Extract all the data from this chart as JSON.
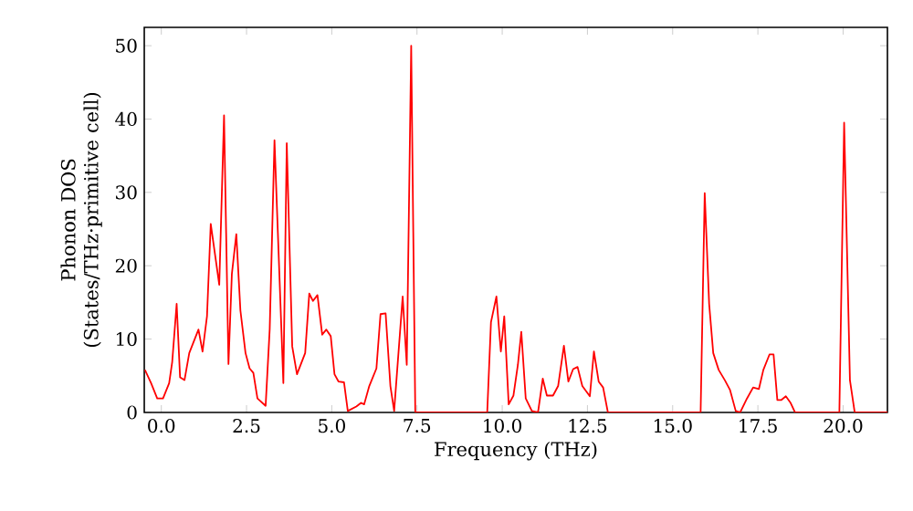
{
  "chart_data": {
    "type": "line",
    "xlabel": "Frequency (THz)",
    "ylabel": "Phonon DOS (States/THz·primitive cell)",
    "xlim": [
      -0.5,
      21.3
    ],
    "ylim": [
      0,
      52.5
    ],
    "xticks": [
      {
        "value": 0,
        "label": "0.0"
      },
      2.5,
      {
        "value": 5,
        "label": "5.0"
      },
      7.5,
      {
        "value": 10,
        "label": "10.0"
      },
      12.5,
      {
        "value": 15,
        "label": "15.0"
      },
      17.5,
      {
        "value": 20,
        "label": "20.0"
      }
    ],
    "yticks": [
      0,
      10,
      20,
      30,
      40,
      50
    ],
    "series": [
      {
        "color": "#ff0000",
        "x": [
          -0.48,
          -0.3,
          -0.12,
          0.05,
          0.23,
          0.32,
          0.45,
          0.55,
          0.68,
          0.82,
          1.09,
          1.21,
          1.34,
          1.45,
          1.7,
          1.84,
          1.97,
          2.07,
          2.2,
          2.32,
          2.47,
          2.59,
          2.7,
          2.82,
          3.06,
          3.18,
          3.32,
          3.58,
          3.68,
          3.84,
          3.98,
          4.22,
          4.34,
          4.45,
          4.58,
          4.72,
          4.84,
          4.97,
          5.08,
          5.2,
          5.36,
          5.47,
          5.72,
          5.86,
          5.95,
          6.1,
          6.31,
          6.43,
          6.58,
          6.72,
          6.83,
          7.08,
          7.2,
          7.33,
          7.45,
          9.56,
          9.67,
          9.83,
          9.96,
          10.06,
          10.19,
          10.33,
          10.46,
          10.56,
          10.69,
          10.87,
          11.05,
          11.19,
          11.31,
          11.49,
          11.64,
          11.81,
          11.94,
          12.08,
          12.21,
          12.35,
          12.57,
          12.69,
          12.83,
          12.96,
          13.1,
          15.82,
          15.94,
          16.07,
          16.19,
          16.35,
          16.53,
          16.68,
          16.85,
          16.98,
          17.18,
          17.36,
          17.53,
          17.66,
          17.84,
          17.96,
          18.07,
          18.19,
          18.32,
          18.46,
          18.59,
          19.89,
          20.03,
          20.2,
          20.34,
          21.3
        ],
        "values": [
          5.8,
          4.0,
          1.9,
          1.9,
          4.0,
          6.9,
          14.8,
          4.8,
          4.4,
          8.1,
          11.3,
          8.3,
          13.1,
          25.7,
          17.4,
          40.5,
          6.6,
          18.9,
          24.3,
          13.9,
          8.1,
          6.0,
          5.4,
          1.9,
          0.9,
          11.4,
          37.1,
          4.0,
          36.7,
          9.0,
          5.2,
          8.1,
          16.2,
          15.2,
          16.0,
          10.6,
          11.3,
          10.4,
          5.2,
          4.2,
          4.1,
          0.2,
          0.8,
          1.3,
          1.1,
          3.6,
          6.0,
          13.4,
          13.5,
          3.6,
          0.2,
          15.8,
          6.5,
          50.0,
          0,
          0,
          12.3,
          15.8,
          8.3,
          13.1,
          1.1,
          2.3,
          6.5,
          11.0,
          1.9,
          0.2,
          0,
          4.6,
          2.3,
          2.3,
          3.6,
          9.1,
          4.2,
          5.9,
          6.2,
          3.6,
          2.2,
          8.3,
          4.2,
          3.4,
          0,
          0,
          29.9,
          14.8,
          8.1,
          5.8,
          4.4,
          3.1,
          0.2,
          0,
          1.9,
          3.4,
          3.2,
          5.8,
          7.9,
          7.9,
          1.7,
          1.7,
          2.2,
          1.3,
          0,
          0,
          39.5,
          4.4,
          0,
          0
        ]
      }
    ]
  }
}
